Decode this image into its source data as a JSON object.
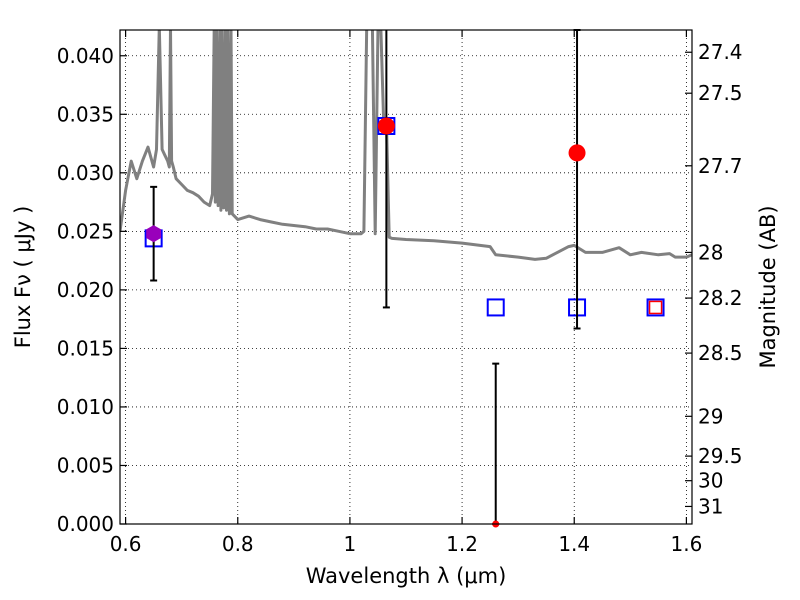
{
  "chart_data": {
    "type": "scatter",
    "xlabel": "Wavelength  λ (μm)",
    "ylabel": "Flux  Fν  ( μJy )",
    "ylabel_right": "Magnitude (AB)",
    "xlim": [
      0.59,
      1.61
    ],
    "ylim": [
      0.0,
      0.0422
    ],
    "grid": true,
    "x_ticks": [
      0.6,
      0.8,
      1.0,
      1.2,
      1.4,
      1.6
    ],
    "x_tick_labels": [
      "0.6",
      "0.8",
      "1",
      "1.2",
      "1.4",
      "1.6"
    ],
    "y_ticks": [
      0.0,
      0.005,
      0.01,
      0.015,
      0.02,
      0.025,
      0.03,
      0.035,
      0.04
    ],
    "y_tick_labels": [
      "0.000",
      "0.005",
      "0.010",
      "0.015",
      "0.020",
      "0.025",
      "0.030",
      "0.035",
      "0.040"
    ],
    "right_ticks": [
      {
        "label": "27.4",
        "flux": 0.0403
      },
      {
        "label": "27.5",
        "flux": 0.0368
      },
      {
        "label": "27.7",
        "flux": 0.0306
      },
      {
        "label": "28",
        "flux": 0.0232
      },
      {
        "label": "28.2",
        "flux": 0.0193
      },
      {
        "label": "28.5",
        "flux": 0.0146
      },
      {
        "label": "29",
        "flux": 0.0092
      },
      {
        "label": "29.5",
        "flux": 0.0058
      },
      {
        "label": "30",
        "flux": 0.0037
      },
      {
        "label": "31",
        "flux": 0.0015
      }
    ],
    "template_spectrum": {
      "color": "#808080",
      "x": [
        0.59,
        0.6,
        0.61,
        0.62,
        0.63,
        0.64,
        0.65,
        0.655,
        0.66,
        0.665,
        0.67,
        0.675,
        0.678,
        0.68,
        0.682,
        0.685,
        0.69,
        0.7,
        0.71,
        0.72,
        0.73,
        0.74,
        0.75,
        0.755,
        0.758,
        0.76,
        0.762,
        0.765,
        0.768,
        0.77,
        0.772,
        0.775,
        0.778,
        0.78,
        0.782,
        0.785,
        0.788,
        0.79,
        0.8,
        0.82,
        0.84,
        0.86,
        0.88,
        0.9,
        0.92,
        0.94,
        0.96,
        0.98,
        1.0,
        1.02,
        1.025,
        1.03,
        1.04,
        1.045,
        1.05,
        1.055,
        1.06,
        1.065,
        1.07,
        1.075,
        1.1,
        1.15,
        1.2,
        1.25,
        1.26,
        1.3,
        1.33,
        1.35,
        1.37,
        1.39,
        1.4,
        1.42,
        1.45,
        1.48,
        1.5,
        1.52,
        1.55,
        1.57,
        1.58,
        1.6,
        1.61
      ],
      "y": [
        0.025,
        0.0285,
        0.031,
        0.0295,
        0.031,
        0.0322,
        0.0305,
        0.032,
        0.0425,
        0.032,
        0.0315,
        0.031,
        0.0305,
        0.0425,
        0.031,
        0.0305,
        0.0295,
        0.029,
        0.0285,
        0.0283,
        0.028,
        0.0275,
        0.0272,
        0.0282,
        0.0425,
        0.0275,
        0.0425,
        0.0272,
        0.0425,
        0.0268,
        0.0425,
        0.027,
        0.0425,
        0.0268,
        0.0425,
        0.0265,
        0.0425,
        0.0265,
        0.026,
        0.0263,
        0.026,
        0.0258,
        0.0256,
        0.0255,
        0.0254,
        0.0252,
        0.0252,
        0.025,
        0.0248,
        0.0248,
        0.025,
        0.0425,
        0.0425,
        0.0248,
        0.0425,
        0.0425,
        0.0345,
        0.0345,
        0.0245,
        0.0244,
        0.0243,
        0.0242,
        0.024,
        0.0237,
        0.023,
        0.0228,
        0.0226,
        0.0227,
        0.0232,
        0.0237,
        0.0238,
        0.0232,
        0.0232,
        0.0236,
        0.023,
        0.0232,
        0.023,
        0.0231,
        0.0228,
        0.0228,
        0.023
      ]
    },
    "model_points": {
      "name": "",
      "marker": "open-square",
      "color": "#0000ff",
      "x": [
        0.65,
        1.065,
        1.26,
        1.405,
        1.545
      ],
      "y": [
        0.0244,
        0.034,
        0.0185,
        0.0185,
        0.0185
      ]
    },
    "observed_points": {
      "marker": "filled-circle",
      "color": "#ff0000",
      "x": [
        1.065,
        1.405,
        1.26,
        1.545
      ],
      "y": [
        0.034,
        0.0317,
        0.0,
        0.0185
      ],
      "yerr_low": [
        0.0155,
        0.015,
        0.0,
        null
      ],
      "yerr_high": [
        0.0085,
        0.0105,
        0.0137,
        null
      ]
    },
    "highlight_point": {
      "marker": "filled-hexagon",
      "color": "#9900bb",
      "x": 0.65,
      "y": 0.0248,
      "yerr_low": 0.004,
      "yerr_high": 0.004
    }
  }
}
